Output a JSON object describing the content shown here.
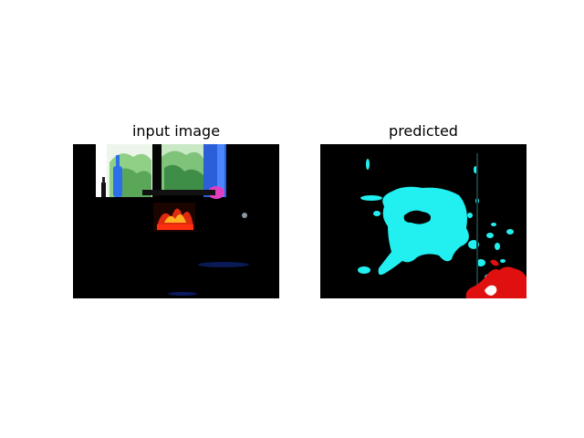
{
  "figure": {
    "panels": [
      {
        "title": "input image",
        "content": "photo: dark indoor scene with window, blue bottle and fireplace"
      },
      {
        "title": "predicted",
        "content": "segmentation mask"
      }
    ]
  },
  "colors": {
    "background": "#000000",
    "segment_cyan": "#22f0f0",
    "segment_red": "#e01010",
    "segment_white": "#ffffff"
  }
}
